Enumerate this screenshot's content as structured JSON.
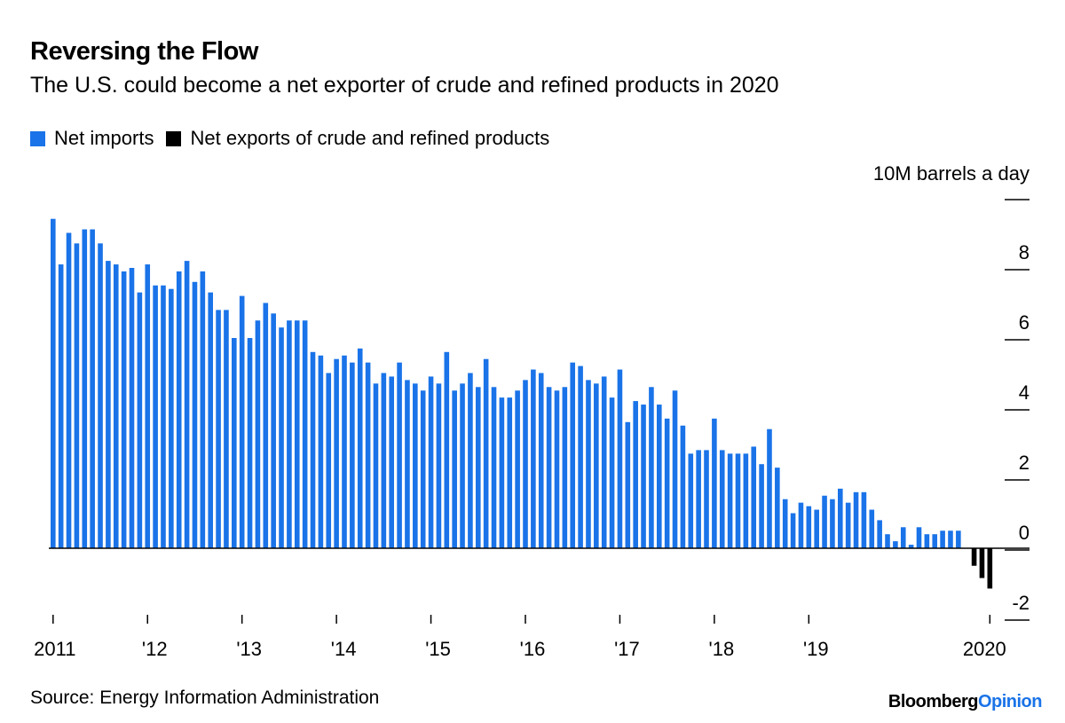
{
  "chart_data": {
    "type": "bar",
    "title": "Reversing the Flow",
    "subtitle": "The U.S. could become a net exporter of crude and refined products in 2020",
    "ylabel": "10M barrels a day",
    "ylim": [
      -2.5,
      10
    ],
    "yticks": [
      10,
      8,
      6,
      4,
      2,
      0,
      -2
    ],
    "ytick_labels": [
      "",
      "8",
      "6",
      "4",
      "2",
      "0",
      "-2"
    ],
    "xticks": [
      {
        "index": 0,
        "label": "2011"
      },
      {
        "index": 12,
        "label": "'12"
      },
      {
        "index": 24,
        "label": "'13"
      },
      {
        "index": 36,
        "label": "'14"
      },
      {
        "index": 48,
        "label": "'15"
      },
      {
        "index": 60,
        "label": "'16"
      },
      {
        "index": 72,
        "label": "'17"
      },
      {
        "index": 84,
        "label": "'18"
      },
      {
        "index": 96,
        "label": "'19"
      },
      {
        "index": 119,
        "label": "2020"
      }
    ],
    "legend_position": "top-left",
    "series": [
      {
        "name": "Net imports",
        "color": "#1a73e8"
      },
      {
        "name": "Net exports of crude and refined products",
        "color": "#000000"
      }
    ],
    "values": [
      9.4,
      8.1,
      9.0,
      8.7,
      9.1,
      9.1,
      8.7,
      8.2,
      8.1,
      7.9,
      8.0,
      7.3,
      8.1,
      7.5,
      7.5,
      7.4,
      7.9,
      8.2,
      7.6,
      7.9,
      7.3,
      6.8,
      6.8,
      6.0,
      7.2,
      6.0,
      6.5,
      7.0,
      6.7,
      6.3,
      6.5,
      6.5,
      6.5,
      5.6,
      5.5,
      5.0,
      5.4,
      5.5,
      5.3,
      5.7,
      5.3,
      4.7,
      5.0,
      4.9,
      5.3,
      4.8,
      4.7,
      4.5,
      4.9,
      4.7,
      5.6,
      4.5,
      4.7,
      5.0,
      4.6,
      5.4,
      4.6,
      4.3,
      4.3,
      4.5,
      4.8,
      5.1,
      5.0,
      4.6,
      4.5,
      4.6,
      5.3,
      5.2,
      4.8,
      4.7,
      4.9,
      4.3,
      5.1,
      3.6,
      4.2,
      4.1,
      4.6,
      4.1,
      3.7,
      4.5,
      3.5,
      2.7,
      2.8,
      2.8,
      3.7,
      2.8,
      2.7,
      2.7,
      2.7,
      2.9,
      2.4,
      3.4,
      2.3,
      1.4,
      1.0,
      1.3,
      1.2,
      1.1,
      1.5,
      1.4,
      1.7,
      1.3,
      1.6,
      1.6,
      1.1,
      0.8,
      0.4,
      0.2,
      0.6,
      0.1,
      0.6,
      0.4,
      0.4,
      0.5,
      0.5,
      0.5,
      0.0,
      -0.5,
      -0.85,
      -1.15
    ]
  },
  "legend": {
    "imports": "Net imports",
    "exports": "Net exports of crude and refined products"
  },
  "footer": {
    "source": "Source: Energy Information Administration",
    "brand_part1": "Bloomberg",
    "brand_part2": "Opinion"
  }
}
